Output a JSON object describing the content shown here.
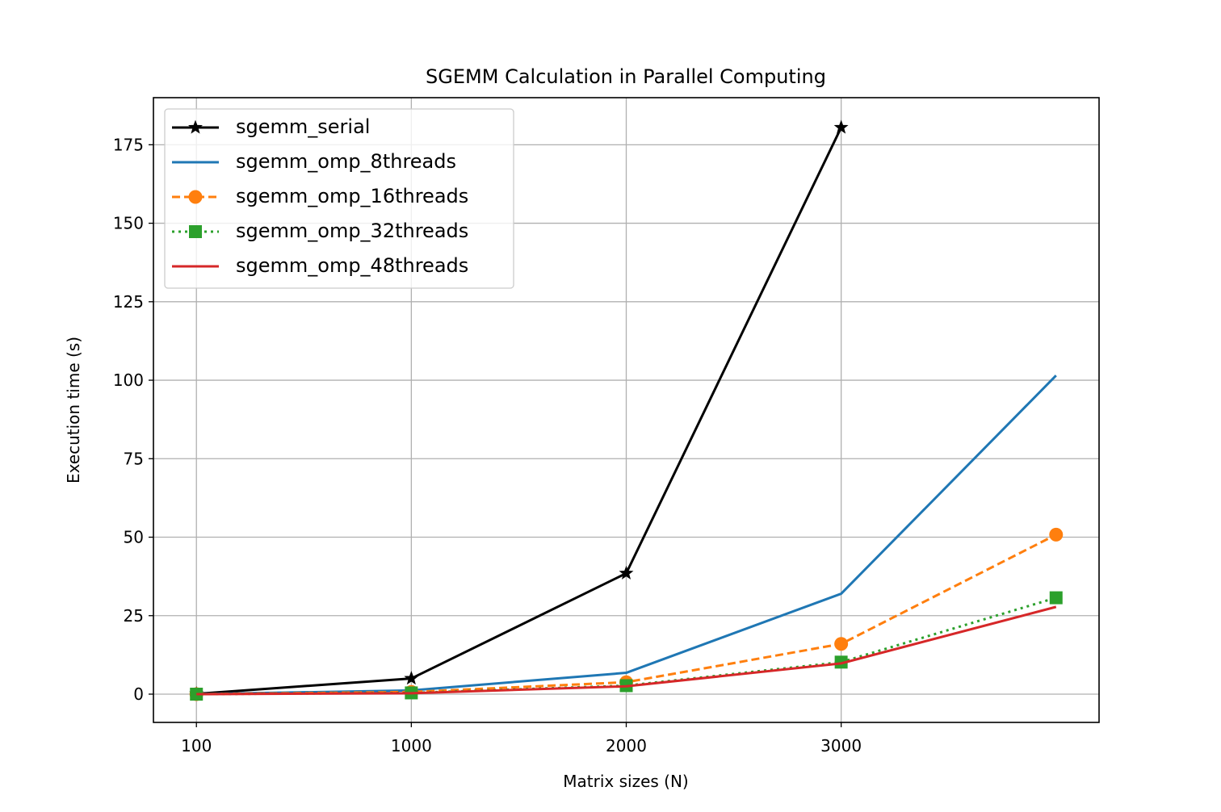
{
  "chart_data": {
    "type": "line",
    "title": "SGEMM Calculation in Parallel Computing",
    "xlabel": "Matrix sizes (N)",
    "ylabel": "Execution time (s)",
    "categories": [
      "100",
      "1000",
      "2000",
      "3000",
      ""
    ],
    "xlim": [
      -0.2,
      4.2
    ],
    "ylim": [
      -9,
      190
    ],
    "yticks": [
      0,
      25,
      50,
      75,
      100,
      125,
      150,
      175
    ],
    "grid": true,
    "legend_position": "upper-left",
    "series": [
      {
        "name": "sgemm_serial",
        "color": "#000000",
        "linestyle": "solid",
        "marker": "star",
        "values": [
          0.1,
          5,
          38.5,
          180.5,
          null
        ]
      },
      {
        "name": "sgemm_omp_8threads",
        "color": "#1f77b4",
        "linestyle": "solid",
        "marker": "none",
        "values": [
          0,
          1.2,
          6.8,
          32,
          101.5
        ]
      },
      {
        "name": "sgemm_omp_16threads",
        "color": "#ff7f0e",
        "linestyle": "dashed",
        "marker": "circle",
        "values": [
          0,
          0.7,
          3.8,
          16,
          50.8
        ]
      },
      {
        "name": "sgemm_omp_32threads",
        "color": "#2ca02c",
        "linestyle": "dotted",
        "marker": "square",
        "values": [
          0,
          0.4,
          2.7,
          10.2,
          30.7
        ]
      },
      {
        "name": "sgemm_omp_48threads",
        "color": "#d62728",
        "linestyle": "solid",
        "marker": "none",
        "values": [
          0,
          0.3,
          2.5,
          9.8,
          27.8
        ]
      }
    ]
  }
}
